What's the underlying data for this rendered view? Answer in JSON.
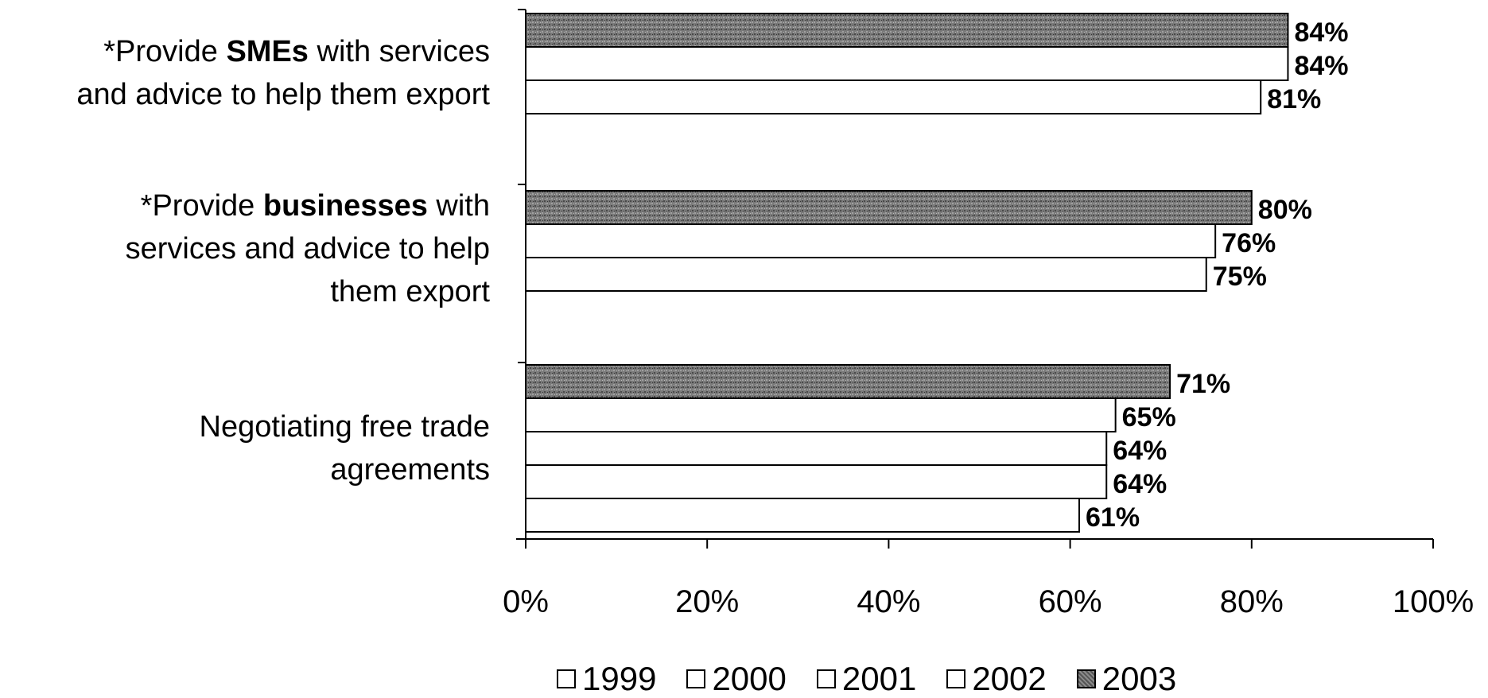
{
  "chart_data": {
    "type": "bar",
    "orientation": "horizontal",
    "categories": [
      {
        "prefix": "*Provide ",
        "bold": "SMEs",
        "rest1": " with services",
        "rest2": "and advice to help them export"
      },
      {
        "prefix": "*Provide ",
        "bold": "businesses",
        "rest1": " with",
        "rest2": "services and advice to help",
        "rest3": "them export"
      },
      {
        "prefix": "",
        "bold": "",
        "rest1": "Negotiating free trade",
        "rest2": "agreements"
      }
    ],
    "series": [
      {
        "name": "2003",
        "values": [
          84,
          80,
          71
        ],
        "color": "#6a6a6a",
        "pattern": "speckled"
      },
      {
        "name": "2002",
        "values": [
          84,
          76,
          65
        ],
        "color": "#ffffff"
      },
      {
        "name": "2001",
        "values": [
          81,
          75,
          64
        ],
        "color": "#ffffff"
      },
      {
        "name": "2000",
        "values": [
          null,
          null,
          64
        ],
        "color": "#ffffff"
      },
      {
        "name": "1999",
        "values": [
          null,
          null,
          61
        ],
        "color": "#ffffff"
      }
    ],
    "data_labels": [
      [
        "84%",
        "84%",
        "81%"
      ],
      [
        "80%",
        "76%",
        "75%"
      ],
      [
        "71%",
        "65%",
        "64%",
        "64%",
        "61%"
      ]
    ],
    "x_ticks": [
      "0%",
      "20%",
      "40%",
      "60%",
      "80%",
      "100%"
    ],
    "xlim": [
      0,
      100
    ],
    "legend": [
      "1999",
      "2000",
      "2001",
      "2002",
      "2003"
    ],
    "legend_position": "bottom"
  }
}
